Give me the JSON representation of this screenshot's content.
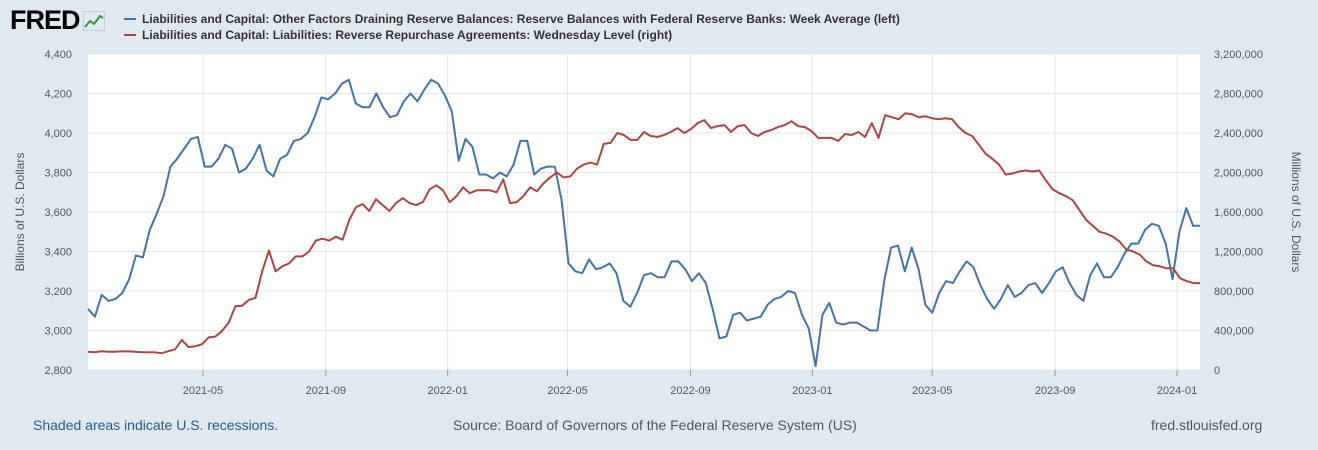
{
  "logo": {
    "text": "FRED"
  },
  "colors": {
    "left_series": "#4572a7",
    "right_series": "#aa4643",
    "background": "#e1e9f0",
    "plot_bg": "#ffffff"
  },
  "chart_data": {
    "type": "line",
    "left_axis": {
      "label": "Billions of U.S. Dollars",
      "ylim": [
        2800,
        4400
      ],
      "ticks": [
        "2,800",
        "3,000",
        "3,200",
        "3,400",
        "3,600",
        "3,800",
        "4,000",
        "4,200",
        "4,400"
      ]
    },
    "right_axis": {
      "label": "Millions of U.S. Dollars",
      "ylim": [
        0,
        3200000
      ],
      "ticks": [
        "0",
        "400,000",
        "800,000",
        "1,200,000",
        "1,600,000",
        "2,000,000",
        "2,400,000",
        "2,800,000",
        "3,200,000"
      ]
    },
    "x_ticks": [
      "2021-05",
      "2021-09",
      "2022-01",
      "2022-05",
      "2022-09",
      "2023-01",
      "2023-05",
      "2023-09",
      "2024-01"
    ],
    "x_range": [
      "2021-01-06",
      "2024-01-24"
    ],
    "grid": true,
    "legend_position": "top",
    "series": [
      {
        "name": "Liabilities and Capital: Other Factors Draining Reserve Balances: Reserve Balances with Federal Reserve Banks: Week Average (left)",
        "axis": "left",
        "values": [
          3110,
          3070,
          3180,
          3150,
          3160,
          3190,
          3260,
          3380,
          3370,
          3510,
          3590,
          3680,
          3830,
          3870,
          3920,
          3970,
          3980,
          3830,
          3830,
          3870,
          3940,
          3920,
          3800,
          3820,
          3870,
          3940,
          3810,
          3780,
          3870,
          3890,
          3960,
          3970,
          4000,
          4080,
          4180,
          4170,
          4200,
          4250,
          4270,
          4150,
          4130,
          4130,
          4200,
          4130,
          4080,
          4090,
          4160,
          4200,
          4160,
          4220,
          4270,
          4250,
          4190,
          4110,
          3860,
          3970,
          3930,
          3790,
          3790,
          3770,
          3800,
          3780,
          3840,
          3960,
          3960,
          3790,
          3820,
          3830,
          3830,
          3660,
          3340,
          3300,
          3290,
          3360,
          3310,
          3320,
          3340,
          3290,
          3150,
          3120,
          3190,
          3280,
          3290,
          3270,
          3270,
          3350,
          3350,
          3310,
          3250,
          3290,
          3240,
          3110,
          2960,
          2970,
          3080,
          3090,
          3050,
          3060,
          3070,
          3130,
          3160,
          3170,
          3200,
          3190,
          3080,
          3010,
          2820,
          3080,
          3140,
          3040,
          3030,
          3040,
          3040,
          3020,
          3000,
          3000,
          3250,
          3420,
          3430,
          3300,
          3420,
          3310,
          3130,
          3090,
          3190,
          3250,
          3240,
          3300,
          3350,
          3320,
          3230,
          3160,
          3110,
          3160,
          3230,
          3170,
          3190,
          3230,
          3240,
          3190,
          3240,
          3300,
          3320,
          3240,
          3180,
          3150,
          3280,
          3340,
          3270,
          3270,
          3320,
          3390,
          3440,
          3440,
          3510,
          3540,
          3530,
          3440,
          3260,
          3500,
          3620,
          3530,
          3530
        ]
      },
      {
        "name": "Liabilities and Capital: Liabilities: Reverse Repurchase Agreements: Wednesday Level (right)",
        "axis": "right",
        "values": [
          185000,
          180000,
          190000,
          185000,
          185000,
          188000,
          188000,
          185000,
          180000,
          180000,
          178000,
          170000,
          190000,
          210000,
          305000,
          232000,
          240000,
          260000,
          330000,
          338000,
          395000,
          480000,
          645000,
          650000,
          710000,
          730000,
          1000000,
          1210000,
          1000000,
          1050000,
          1080000,
          1150000,
          1150000,
          1200000,
          1310000,
          1330000,
          1310000,
          1350000,
          1320000,
          1520000,
          1650000,
          1680000,
          1610000,
          1730000,
          1670000,
          1610000,
          1690000,
          1740000,
          1690000,
          1670000,
          1700000,
          1830000,
          1870000,
          1820000,
          1700000,
          1760000,
          1850000,
          1790000,
          1820000,
          1820000,
          1820000,
          1800000,
          1930000,
          1690000,
          1700000,
          1760000,
          1850000,
          1810000,
          1890000,
          1950000,
          2000000,
          1950000,
          1960000,
          2040000,
          2080000,
          2100000,
          2080000,
          2290000,
          2300000,
          2400000,
          2380000,
          2330000,
          2330000,
          2410000,
          2370000,
          2360000,
          2380000,
          2410000,
          2450000,
          2400000,
          2440000,
          2500000,
          2530000,
          2450000,
          2470000,
          2480000,
          2410000,
          2470000,
          2480000,
          2400000,
          2370000,
          2410000,
          2430000,
          2460000,
          2480000,
          2520000,
          2470000,
          2460000,
          2420000,
          2350000,
          2350000,
          2350000,
          2320000,
          2390000,
          2380000,
          2410000,
          2360000,
          2500000,
          2350000,
          2580000,
          2560000,
          2540000,
          2600000,
          2590000,
          2560000,
          2570000,
          2550000,
          2540000,
          2550000,
          2540000,
          2460000,
          2400000,
          2370000,
          2280000,
          2190000,
          2140000,
          2080000,
          1980000,
          1990000,
          2010000,
          2020000,
          2010000,
          2020000,
          1920000,
          1830000,
          1790000,
          1760000,
          1720000,
          1620000,
          1520000,
          1460000,
          1400000,
          1380000,
          1350000,
          1300000,
          1220000,
          1200000,
          1170000,
          1100000,
          1060000,
          1050000,
          1030000,
          1030000,
          930000,
          900000,
          880000,
          880000
        ]
      }
    ]
  },
  "footer": {
    "left": "Shaded areas indicate U.S. recessions.",
    "middle": "Source: Board of Governors of the Federal Reserve System (US)",
    "right": "fred.stlouisfed.org"
  }
}
